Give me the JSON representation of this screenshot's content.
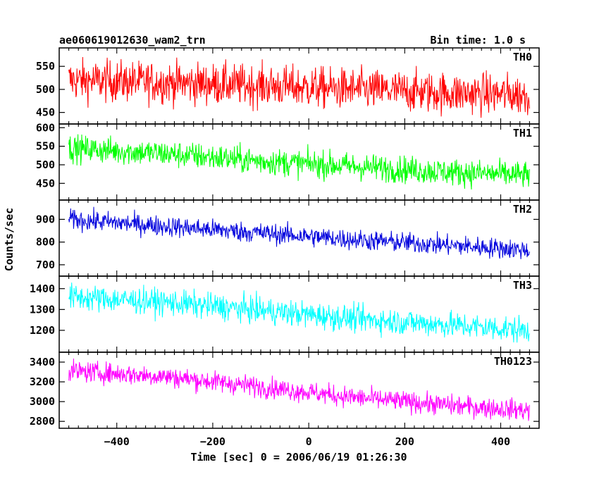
{
  "header": {
    "title": "ae060619012630_wam2_trn",
    "bin_time": "Bin time: 1.0 s"
  },
  "chart_data": {
    "type": "line",
    "xlabel": "Time [sec] 0 = 2006/06/19 01:26:30",
    "ylabel": "Counts/sec",
    "xlim": [
      -520,
      480
    ],
    "x_ticks": [
      -400,
      -200,
      0,
      200,
      400
    ],
    "x_tick_labels": [
      "−400",
      "−200",
      "0",
      "200",
      "400"
    ],
    "x_range": [
      -500,
      460
    ],
    "panels": [
      {
        "name": "TH0",
        "color": "#ff0000",
        "ylim": [
          425,
          590
        ],
        "y_ticks": [
          450,
          500,
          550
        ],
        "trend": [
          [
            -500,
            520
          ],
          [
            -300,
            515
          ],
          [
            -100,
            508
          ],
          [
            100,
            500
          ],
          [
            300,
            492
          ],
          [
            460,
            488
          ]
        ],
        "noise": 32
      },
      {
        "name": "TH1",
        "color": "#00ff00",
        "ylim": [
          405,
          610
        ],
        "y_ticks": [
          450,
          500,
          550,
          600
        ],
        "trend": [
          [
            -500,
            545
          ],
          [
            -300,
            530
          ],
          [
            -100,
            510
          ],
          [
            100,
            495
          ],
          [
            300,
            480
          ],
          [
            460,
            472
          ]
        ],
        "noise": 26
      },
      {
        "name": "TH2",
        "color": "#0000dd",
        "ylim": [
          650,
          985
        ],
        "y_ticks": [
          700,
          800,
          900
        ],
        "trend": [
          [
            -500,
            900
          ],
          [
            -300,
            870
          ],
          [
            -100,
            840
          ],
          [
            100,
            810
          ],
          [
            300,
            785
          ],
          [
            460,
            765
          ]
        ],
        "noise": 32
      },
      {
        "name": "TH3",
        "color": "#00ffff",
        "ylim": [
          1095,
          1460
        ],
        "y_ticks": [
          1200,
          1300,
          1400
        ],
        "trend": [
          [
            -500,
            1360
          ],
          [
            -300,
            1335
          ],
          [
            -100,
            1295
          ],
          [
            100,
            1255
          ],
          [
            300,
            1225
          ],
          [
            460,
            1200
          ]
        ],
        "noise": 45
      },
      {
        "name": "TH0123",
        "color": "#ff00ff",
        "ylim": [
          2730,
          3500
        ],
        "y_ticks": [
          2800,
          3000,
          3200,
          3400
        ],
        "trend": [
          [
            -500,
            3310
          ],
          [
            -300,
            3255
          ],
          [
            -100,
            3150
          ],
          [
            100,
            3040
          ],
          [
            300,
            2960
          ],
          [
            460,
            2910
          ]
        ],
        "noise": 75
      }
    ]
  }
}
